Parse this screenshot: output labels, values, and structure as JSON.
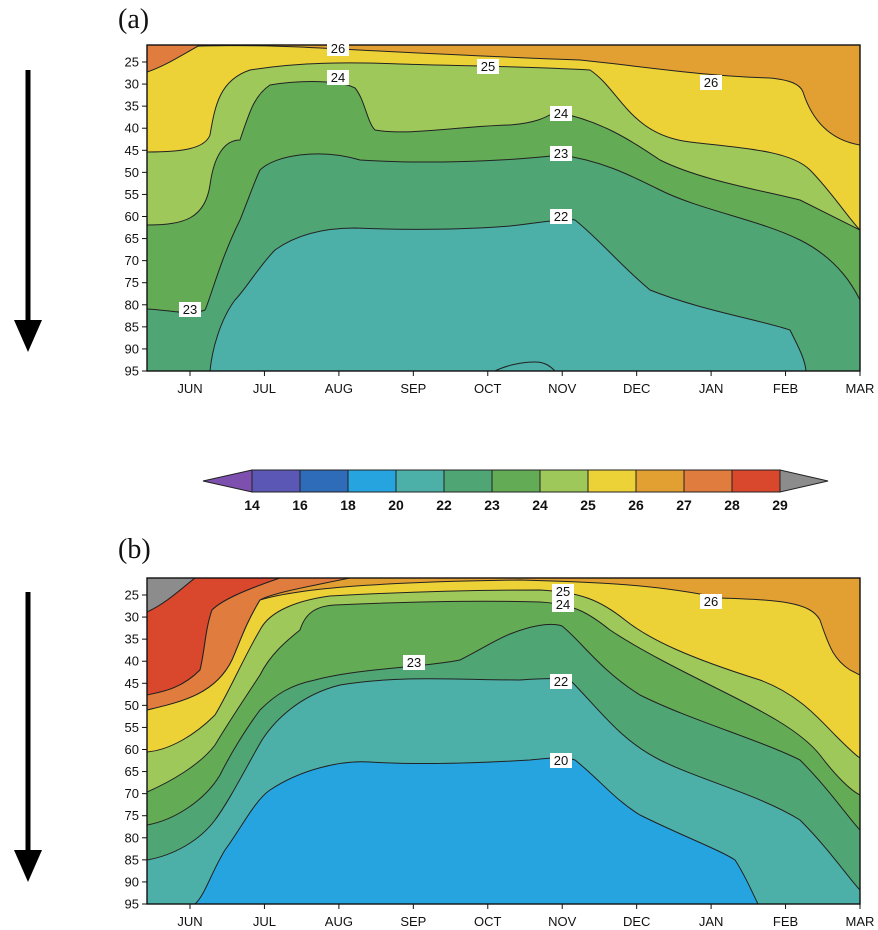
{
  "chart_data": [
    {
      "panel_label": "(a)",
      "type": "heatmap",
      "title": "",
      "xlabel": "",
      "ylabel": "",
      "x_ticks": [
        "JUN",
        "JUL",
        "AUG",
        "SEP",
        "OCT",
        "NOV",
        "DEC",
        "JAN",
        "FEB",
        "MAR"
      ],
      "y_ticks": [
        25,
        30,
        35,
        40,
        45,
        50,
        55,
        60,
        65,
        70,
        75,
        80,
        85,
        90,
        95
      ],
      "y_direction": "downward (arrow)",
      "contour_labels": [
        "26",
        "25",
        "26",
        "24",
        "24",
        "23",
        "22",
        "23"
      ],
      "regions": [
        {
          "level": 27,
          "color": "#e3a032"
        },
        {
          "level": 26,
          "color": "#ecd237"
        },
        {
          "level": 25,
          "color": "#9fc85a"
        },
        {
          "level": 24,
          "color": "#63ac55"
        },
        {
          "level": 23,
          "color": "#4fa574"
        },
        {
          "level": 22,
          "color": "#4cb0a8"
        },
        {
          "level": 28,
          "color": "#e07c3e"
        }
      ]
    },
    {
      "panel_label": "(b)",
      "type": "heatmap",
      "title": "",
      "xlabel": "",
      "ylabel": "",
      "x_ticks": [
        "JUN",
        "JUL",
        "AUG",
        "SEP",
        "OCT",
        "NOV",
        "DEC",
        "JAN",
        "FEB",
        "MAR"
      ],
      "y_ticks": [
        25,
        30,
        35,
        40,
        45,
        50,
        55,
        60,
        65,
        70,
        75,
        80,
        85,
        90,
        95
      ],
      "y_direction": "downward (arrow)",
      "contour_labels": [
        "25",
        "24",
        "26",
        "23",
        "22",
        "20"
      ],
      "regions": [
        {
          "level": 29,
          "color": "#8c8c8c"
        },
        {
          "level": 28,
          "color": "#d9472c"
        },
        {
          "level": 27,
          "color": "#e07c3e"
        },
        {
          "level": 26,
          "color": "#e3a032"
        },
        {
          "level": 25,
          "color": "#ecd237"
        },
        {
          "level": 24,
          "color": "#9fc85a"
        },
        {
          "level": 23,
          "color": "#63ac55"
        },
        {
          "level": 22,
          "color": "#4fa574"
        },
        {
          "level": 20,
          "color": "#4cb0a8"
        },
        {
          "level": 18,
          "color": "#26a4e0"
        }
      ]
    }
  ],
  "colorbar": {
    "ticks": [
      "14",
      "16",
      "18",
      "20",
      "22",
      "23",
      "24",
      "25",
      "26",
      "27",
      "28",
      "29"
    ],
    "colors": [
      "#7d4fae",
      "#5b58b5",
      "#2e6bb8",
      "#26a4e0",
      "#4cb0a8",
      "#4fa574",
      "#63ac55",
      "#9fc85a",
      "#ecd237",
      "#e3a032",
      "#e07c3e",
      "#d9472c",
      "#8c8c8c"
    ]
  }
}
